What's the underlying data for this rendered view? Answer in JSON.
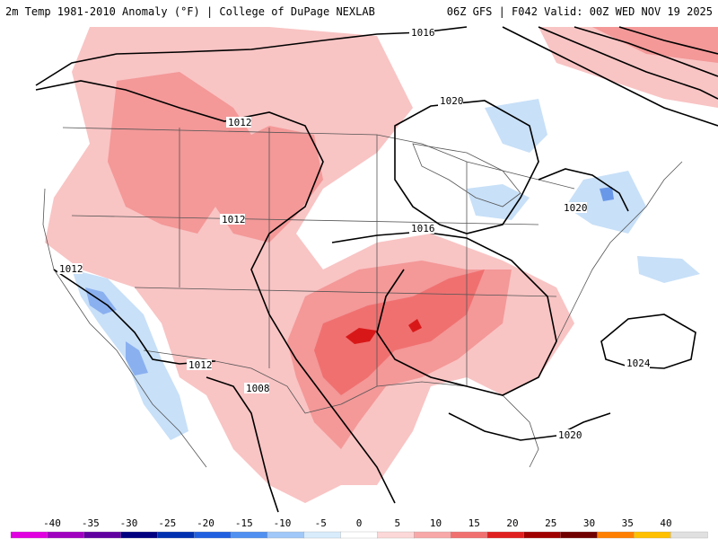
{
  "header": {
    "left_text": "2m Temp 1981-2010 Anomaly (°F) | College of DuPage NEXLAB",
    "right_text": "06Z GFS | F042 Valid: 00Z WED NOV 19 2025"
  },
  "isobar_labels": [
    "1016",
    "1020",
    "1012",
    "1012",
    "1016",
    "1020",
    "1012",
    "1012",
    "1008",
    "1024",
    "1020"
  ],
  "colorbar": {
    "ticks": [
      "-40",
      "-35",
      "-30",
      "-25",
      "-20",
      "-15",
      "-10",
      "-5",
      "0",
      "5",
      "10",
      "15",
      "20",
      "25",
      "30",
      "35",
      "40"
    ],
    "colors": [
      "#e000e0",
      "#a000c0",
      "#6000a0",
      "#000080",
      "#0030b0",
      "#2060e0",
      "#5090f0",
      "#a0c8f8",
      "#d8ecfc",
      "#ffffff",
      "#fcd8d8",
      "#f8a8a8",
      "#f07070",
      "#e02020",
      "#a00000",
      "#700000",
      "#ff8000",
      "#ffc000",
      "#e0e0e0"
    ]
  }
}
